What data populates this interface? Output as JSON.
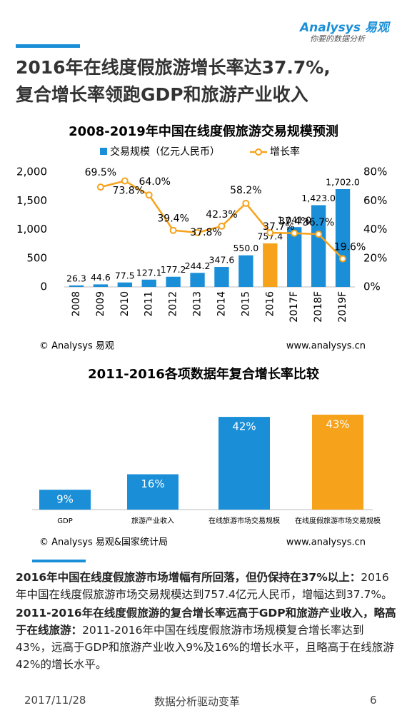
{
  "header": {
    "logo": "Analysys 易观",
    "tagline": "你要的数据分析"
  },
  "title": [
    "2016年在线度假旅游增长率达37.7%,",
    "复合增长率领跑GDP和旅游产业收入"
  ],
  "chart_data": [
    {
      "type": "bar",
      "title": "2008-2019年中国在线度假旅游交易规模预测",
      "categories": [
        "2008",
        "2009",
        "2010",
        "2011",
        "2012",
        "2013",
        "2014",
        "2015",
        "2016",
        "2017F",
        "2018F",
        "2019F"
      ],
      "series": [
        {
          "name": "交易规模（亿元人民币）",
          "color": "#1a8fd8",
          "colors": [
            "#1a8fd8",
            "#1a8fd8",
            "#1a8fd8",
            "#1a8fd8",
            "#1a8fd8",
            "#1a8fd8",
            "#1a8fd8",
            "#1a8fd8",
            "#f7a21b",
            "#1a8fd8",
            "#1a8fd8",
            "#1a8fd8"
          ],
          "values": [
            26.3,
            44.6,
            77.5,
            127.1,
            177.2,
            244.2,
            347.6,
            550.0,
            757.4,
            1041.0,
            1423.0,
            1702.0
          ],
          "value_labels": [
            "26.3",
            "44.6",
            "77.5",
            "127.1",
            "177.2",
            "244.2",
            "347.6",
            "550.0",
            "757.4",
            "1,041.0",
            "1,423.0",
            "1,702.0"
          ]
        },
        {
          "name": "增长率",
          "type": "line",
          "axis": "y2",
          "color": "#f7a21b",
          "values": [
            null,
            69.5,
            73.8,
            64.0,
            39.4,
            37.8,
            42.3,
            58.2,
            37.7,
            37.4,
            36.7,
            19.6
          ],
          "value_labels": [
            null,
            "69.5%",
            "73.8%",
            "64.0%",
            "39.4%",
            "37.8%",
            "42.3%",
            "58.2%",
            "37.7%",
            "37.4%",
            "36.7%",
            "19.6%"
          ]
        }
      ],
      "ylim": [
        0,
        2000
      ],
      "yticks": [
        {
          "value": 0,
          "label": "0"
        },
        {
          "value": 500,
          "label": "500"
        },
        {
          "value": 1000,
          "label": "1,000"
        },
        {
          "value": 1500,
          "label": "1,500"
        },
        {
          "value": 2000,
          "label": "2,000"
        }
      ],
      "y2lim": [
        0,
        80
      ],
      "y2ticks": [
        {
          "value": 0,
          "label": "0%"
        },
        {
          "value": 20,
          "label": "20%"
        },
        {
          "value": 40,
          "label": "40%"
        },
        {
          "value": 60,
          "label": "60%"
        },
        {
          "value": 80,
          "label": "80%"
        }
      ],
      "source": "© Analysys 易观",
      "website": "www.analysys.cn"
    },
    {
      "type": "bar",
      "title": "2011-2016各项数据年复合增长率比较",
      "categories": [
        "GDP",
        "旅游产业收入",
        "在线旅游市场交易规模",
        "在线度假旅游市场交易规模"
      ],
      "values": [
        9,
        16,
        42,
        43
      ],
      "value_labels": [
        "9%",
        "16%",
        "42%",
        "43%"
      ],
      "colors": [
        "#1a8fd8",
        "#1a8fd8",
        "#1a8fd8",
        "#f7a21b"
      ],
      "ylim": [
        0,
        43
      ],
      "source": "© Analysys 易观&国家统计局",
      "website": "www.analysys.cn"
    }
  ],
  "body": [
    {
      "bold": "2016年中国在线度假旅游市场增幅有所回落，但仍保持在37%以上：",
      "text": "2016年中国在线度假旅游市场交易规模达到757.4亿元人民币，增幅达到37.7%。"
    },
    {
      "bold": "2011-2016年在线度假旅游的复合增长率远高于GDP和旅游产业收入，略高于在线旅游：",
      "text": "2011-2016年中国在线度假旅游市场规模复合增长率达到43%，远高于GDP和旅游产业收入9%及16%的增长水平，且略高于在线旅游42%的增长水平。"
    }
  ],
  "footer": {
    "date": "2017/11/28",
    "slogan": "数据分析驱动变革",
    "page": "6"
  }
}
